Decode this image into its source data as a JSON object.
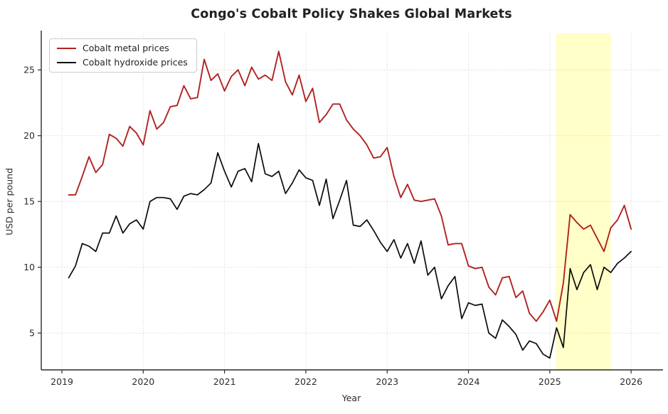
{
  "title": "Congo's Cobalt Policy Shakes Global Markets",
  "axis": {
    "xlabel": "Year",
    "ylabel": "USD per pound"
  },
  "legend": {
    "items": [
      {
        "label": "Cobalt metal prices",
        "color": "#b22222"
      },
      {
        "label": "Cobalt hydroxide prices",
        "color": "#0a0a0a"
      }
    ]
  },
  "chart_data": {
    "type": "line",
    "title": "Congo's Cobalt Policy Shakes Global Markets",
    "xlabel": "Year",
    "ylabel": "USD per pound",
    "x_unit": "decimal_year_monthly",
    "x_start_year": 2019,
    "x_first_month": 2,
    "x_step_months": 1,
    "x_count": 84,
    "xlim": [
      2018.746,
      2026.375
    ],
    "ylim": [
      2.2,
      27.77
    ],
    "x_ticks": [
      2019,
      2020,
      2021,
      2022,
      2023,
      2024,
      2025,
      2026
    ],
    "y_ticks": [
      5,
      10,
      15,
      20,
      25
    ],
    "grid": "dotted, both axes",
    "legend_position": "upper left",
    "highlight_span": {
      "x_from": 2025.08,
      "x_to": 2025.75,
      "color": "#ffff99",
      "opacity": 0.55
    },
    "series": [
      {
        "name": "Cobalt metal prices",
        "color": "#b22222",
        "line_width": 1.9,
        "values": [
          15.5,
          15.5,
          16.9,
          18.4,
          17.2,
          17.8,
          20.1,
          19.8,
          19.2,
          20.7,
          20.2,
          19.3,
          21.9,
          20.5,
          21.0,
          22.2,
          22.3,
          23.8,
          22.8,
          22.9,
          25.8,
          24.2,
          24.7,
          23.4,
          24.5,
          25.0,
          23.8,
          25.2,
          24.3,
          24.6,
          24.2,
          26.4,
          24.1,
          23.1,
          24.6,
          22.6,
          23.6,
          21.0,
          21.6,
          22.4,
          22.4,
          21.2,
          20.5,
          20.0,
          19.3,
          18.3,
          18.4,
          19.1,
          16.9,
          15.3,
          16.3,
          15.1,
          15.0,
          15.1,
          15.2,
          13.9,
          11.7,
          11.8,
          11.8,
          10.1,
          9.9,
          10.0,
          8.5,
          7.9,
          9.2,
          9.3,
          7.7,
          8.2,
          6.5,
          5.9,
          6.6,
          7.5,
          5.9,
          8.8,
          14.0,
          13.4,
          12.9,
          13.2,
          12.2,
          11.2,
          13.0,
          13.6,
          14.7,
          12.9
        ]
      },
      {
        "name": "Cobalt hydroxide prices",
        "color": "#0a0a0a",
        "line_width": 1.7,
        "values": [
          9.2,
          10.1,
          11.8,
          11.6,
          11.2,
          12.6,
          12.6,
          13.9,
          12.6,
          13.3,
          13.6,
          12.9,
          15.0,
          15.3,
          15.3,
          15.2,
          14.4,
          15.4,
          15.6,
          15.5,
          15.9,
          16.4,
          18.7,
          17.3,
          16.1,
          17.3,
          17.5,
          16.5,
          19.4,
          17.1,
          16.9,
          17.3,
          15.6,
          16.4,
          17.4,
          16.8,
          16.6,
          14.7,
          16.7,
          13.7,
          15.1,
          16.6,
          13.2,
          13.1,
          13.6,
          12.8,
          11.9,
          11.2,
          12.1,
          10.7,
          11.8,
          10.3,
          12.0,
          9.4,
          10.0,
          7.6,
          8.6,
          9.3,
          6.1,
          7.3,
          7.1,
          7.2,
          5.0,
          4.6,
          6.0,
          5.5,
          4.9,
          3.7,
          4.4,
          4.2,
          3.4,
          3.1,
          5.4,
          3.9,
          9.9,
          8.3,
          9.6,
          10.2,
          8.3,
          10.0,
          9.6,
          10.3,
          10.7,
          11.2
        ]
      }
    ]
  }
}
